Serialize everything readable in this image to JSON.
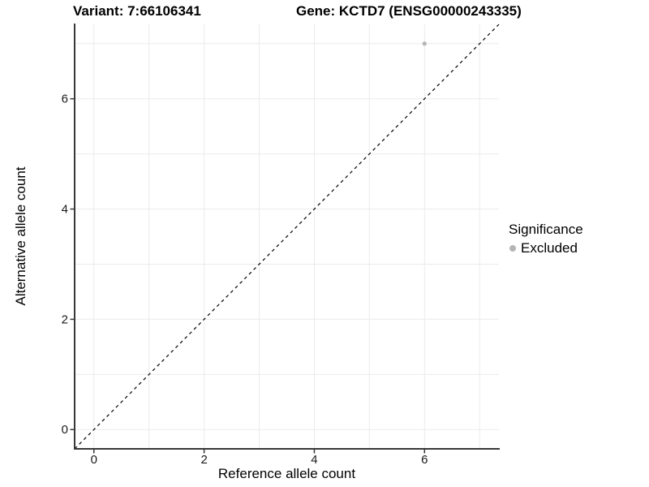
{
  "header": {
    "variant_title": "Variant: 7:66106341",
    "gene_title": "Gene: KCTD7 (ENSG00000243335)"
  },
  "axes": {
    "x_label": "Reference allele count",
    "y_label": "Alternative allele count"
  },
  "legend": {
    "title": "Significance",
    "position": "right",
    "items": [
      {
        "label": "Excluded",
        "color": "#b5b5b5"
      }
    ]
  },
  "chart_data": {
    "type": "scatter",
    "title": "Variant: 7:66106341    Gene: KCTD7 (ENSG00000243335)",
    "xlabel": "Reference allele count",
    "ylabel": "Alternative allele count",
    "xlim": [
      -0.35,
      7.35
    ],
    "ylim": [
      -0.35,
      7.35
    ],
    "x_ticks": [
      0,
      2,
      4,
      6
    ],
    "y_ticks": [
      0,
      2,
      4,
      6
    ],
    "grid_values": [
      0,
      1,
      2,
      3,
      4,
      5,
      6,
      7
    ],
    "grid": "on",
    "legend_position": "right",
    "series": [
      {
        "name": "Excluded",
        "color": "#b5b5b5",
        "points": [
          {
            "x": 6,
            "y": 7
          }
        ]
      }
    ],
    "reference_line": {
      "kind": "identity y=x",
      "style": "dashed",
      "color": "#000000"
    },
    "colors": {
      "gridline": "#ebebeb",
      "axis_line": "#383838",
      "tick_label": "#1a1a1a",
      "point": "#b5b5b5"
    }
  }
}
